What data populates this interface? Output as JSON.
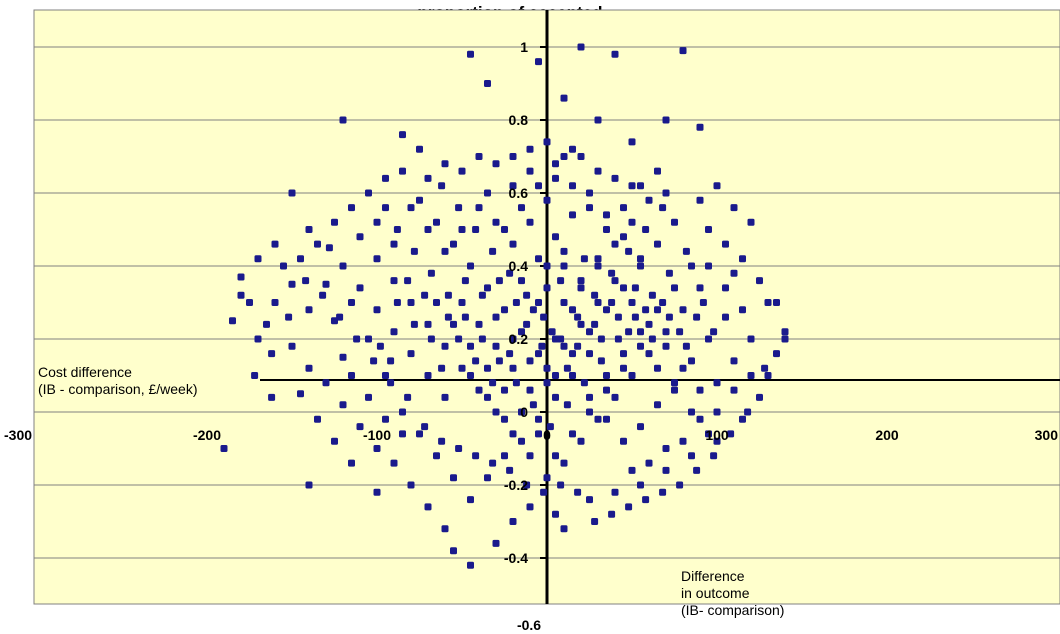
{
  "chart_data": {
    "type": "scatter",
    "title": "...proportion of accepted...",
    "xlabel": "Cost difference (IB - comparison, £/week)",
    "ylabel": "Difference in outcome (IB- comparison)",
    "xlabel_lines": [
      "Cost difference",
      "(IB - comparison, £/week)"
    ],
    "ylabel_lines": [
      "Difference",
      "in outcome",
      "(IB- comparison)"
    ],
    "xlim": [
      -300,
      300
    ],
    "ylim": [
      -0.6,
      1.1
    ],
    "x_ticks": [
      -300,
      -200,
      -100,
      0,
      100,
      200,
      300
    ],
    "x_tick_labels": [
      "-300",
      "-200",
      "-100",
      "0",
      "100",
      "200",
      "300"
    ],
    "y_ticks": [
      -0.4,
      -0.2,
      0,
      0.2,
      0.4,
      0.6,
      0.8,
      1
    ],
    "y_tick_labels": [
      "-0.4",
      "-0.2",
      "0",
      "0.2",
      "0.4",
      "0.6",
      "0.8",
      "1"
    ],
    "y_min_label": "-0.6",
    "grid": true,
    "legend": "none",
    "colors": {
      "plot_background": "#ffffcc",
      "points": "#1a1a8c",
      "axes": "#000000"
    },
    "points": [
      [
        -45,
        0.98
      ],
      [
        -5,
        0.96
      ],
      [
        -35,
        0.9
      ],
      [
        20,
        1.0
      ],
      [
        80,
        0.99
      ],
      [
        40,
        0.98
      ],
      [
        -120,
        0.8
      ],
      [
        -85,
        0.76
      ],
      [
        -75,
        0.72
      ],
      [
        -60,
        0.68
      ],
      [
        -40,
        0.7
      ],
      [
        -20,
        0.62
      ],
      [
        -10,
        0.66
      ],
      [
        5,
        0.64
      ],
      [
        10,
        0.86
      ],
      [
        15,
        0.72
      ],
      [
        30,
        0.8
      ],
      [
        50,
        0.74
      ],
      [
        65,
        0.66
      ],
      [
        70,
        0.8
      ],
      [
        90,
        0.78
      ],
      [
        100,
        0.62
      ],
      [
        110,
        0.56
      ],
      [
        120,
        0.52
      ],
      [
        -150,
        0.6
      ],
      [
        -140,
        0.5
      ],
      [
        -160,
        0.46
      ],
      [
        -170,
        0.42
      ],
      [
        -180,
        0.37
      ],
      [
        -175,
        0.3
      ],
      [
        -165,
        0.24
      ],
      [
        -150,
        0.18
      ],
      [
        -140,
        0.12
      ],
      [
        -130,
        0.08
      ],
      [
        -120,
        0.02
      ],
      [
        -110,
        -0.04
      ],
      [
        -100,
        -0.1
      ],
      [
        -90,
        -0.14
      ],
      [
        -80,
        -0.2
      ],
      [
        -70,
        -0.26
      ],
      [
        -60,
        -0.32
      ],
      [
        -55,
        -0.38
      ],
      [
        -45,
        -0.42
      ],
      [
        -30,
        -0.36
      ],
      [
        -20,
        -0.3
      ],
      [
        -10,
        -0.26
      ],
      [
        5,
        -0.28
      ],
      [
        10,
        -0.32
      ],
      [
        25,
        -0.24
      ],
      [
        40,
        -0.22
      ],
      [
        55,
        -0.2
      ],
      [
        70,
        -0.16
      ],
      [
        85,
        -0.12
      ],
      [
        100,
        -0.08
      ],
      [
        115,
        -0.02
      ],
      [
        125,
        0.04
      ],
      [
        130,
        0.1
      ],
      [
        135,
        0.16
      ],
      [
        140,
        0.22
      ],
      [
        135,
        0.3
      ],
      [
        125,
        0.36
      ],
      [
        115,
        0.42
      ],
      [
        105,
        0.46
      ],
      [
        95,
        0.5
      ],
      [
        -190,
        -0.1
      ],
      [
        -140,
        -0.2
      ],
      [
        -100,
        -0.22
      ],
      [
        -95,
        0.56
      ],
      [
        -110,
        0.48
      ],
      [
        -100,
        0.42
      ],
      [
        -90,
        0.36
      ],
      [
        -80,
        0.3
      ],
      [
        -70,
        0.24
      ],
      [
        -60,
        0.18
      ],
      [
        -50,
        0.12
      ],
      [
        -40,
        0.06
      ],
      [
        -30,
        0.0
      ],
      [
        -20,
        -0.06
      ],
      [
        -10,
        -0.12
      ],
      [
        0,
        -0.18
      ],
      [
        10,
        -0.14
      ],
      [
        20,
        -0.08
      ],
      [
        30,
        -0.02
      ],
      [
        40,
        0.04
      ],
      [
        50,
        0.1
      ],
      [
        60,
        0.16
      ],
      [
        70,
        0.22
      ],
      [
        80,
        0.28
      ],
      [
        90,
        0.34
      ],
      [
        -88,
        0.5
      ],
      [
        -78,
        0.44
      ],
      [
        -68,
        0.38
      ],
      [
        -58,
        0.32
      ],
      [
        -48,
        0.26
      ],
      [
        -38,
        0.2
      ],
      [
        -28,
        0.14
      ],
      [
        -18,
        0.08
      ],
      [
        -8,
        0.02
      ],
      [
        2,
        -0.04
      ],
      [
        12,
        0.02
      ],
      [
        22,
        0.08
      ],
      [
        32,
        0.14
      ],
      [
        42,
        0.2
      ],
      [
        52,
        0.26
      ],
      [
        62,
        0.32
      ],
      [
        72,
        0.38
      ],
      [
        82,
        0.44
      ],
      [
        -75,
        0.58
      ],
      [
        -65,
        0.52
      ],
      [
        -55,
        0.46
      ],
      [
        -45,
        0.4
      ],
      [
        -35,
        0.34
      ],
      [
        -25,
        0.28
      ],
      [
        -15,
        0.22
      ],
      [
        -5,
        0.16
      ],
      [
        5,
        0.1
      ],
      [
        15,
        0.16
      ],
      [
        25,
        0.22
      ],
      [
        35,
        0.28
      ],
      [
        45,
        0.34
      ],
      [
        55,
        0.4
      ],
      [
        65,
        0.46
      ],
      [
        75,
        0.52
      ],
      [
        -62,
        0.62
      ],
      [
        -52,
        0.56
      ],
      [
        -42,
        0.5
      ],
      [
        -32,
        0.44
      ],
      [
        -22,
        0.38
      ],
      [
        -12,
        0.32
      ],
      [
        -2,
        0.26
      ],
      [
        8,
        0.2
      ],
      [
        18,
        0.26
      ],
      [
        28,
        0.32
      ],
      [
        38,
        0.38
      ],
      [
        48,
        0.44
      ],
      [
        58,
        0.5
      ],
      [
        68,
        0.56
      ],
      [
        -50,
        0.3
      ],
      [
        -40,
        0.24
      ],
      [
        -30,
        0.18
      ],
      [
        -20,
        0.12
      ],
      [
        -10,
        0.06
      ],
      [
        0,
        0.12
      ],
      [
        10,
        0.18
      ],
      [
        20,
        0.24
      ],
      [
        30,
        0.3
      ],
      [
        40,
        0.36
      ],
      [
        50,
        0.3
      ],
      [
        60,
        0.24
      ],
      [
        70,
        0.18
      ],
      [
        80,
        0.12
      ],
      [
        90,
        0.06
      ],
      [
        100,
        0.0
      ],
      [
        -45,
        0.1
      ],
      [
        -35,
        0.04
      ],
      [
        -25,
        -0.02
      ],
      [
        -15,
        -0.08
      ],
      [
        -5,
        -0.02
      ],
      [
        5,
        0.04
      ],
      [
        15,
        0.1
      ],
      [
        25,
        0.04
      ],
      [
        35,
        -0.02
      ],
      [
        45,
        -0.08
      ],
      [
        55,
        -0.04
      ],
      [
        65,
        0.02
      ],
      [
        75,
        0.08
      ],
      [
        85,
        0.14
      ],
      [
        95,
        0.2
      ],
      [
        105,
        0.26
      ],
      [
        -130,
        0.35
      ],
      [
        -125,
        0.25
      ],
      [
        -120,
        0.15
      ],
      [
        -115,
        0.3
      ],
      [
        -105,
        0.2
      ],
      [
        -95,
        0.1
      ],
      [
        -85,
        0.0
      ],
      [
        -75,
        -0.06
      ],
      [
        -65,
        -0.12
      ],
      [
        -55,
        -0.18
      ],
      [
        -45,
        -0.24
      ],
      [
        -35,
        -0.18
      ],
      [
        -25,
        -0.12
      ],
      [
        -15,
        0.36
      ],
      [
        -5,
        0.42
      ],
      [
        5,
        0.48
      ],
      [
        15,
        0.54
      ],
      [
        25,
        0.6
      ],
      [
        35,
        0.54
      ],
      [
        45,
        0.48
      ],
      [
        55,
        0.42
      ],
      [
        -25,
        0.5
      ],
      [
        -15,
        0.56
      ],
      [
        -5,
        0.62
      ],
      [
        5,
        0.68
      ],
      [
        15,
        0.62
      ],
      [
        25,
        0.56
      ],
      [
        35,
        0.5
      ],
      [
        45,
        0.56
      ],
      [
        55,
        0.62
      ],
      [
        -35,
        0.6
      ],
      [
        -20,
        0.7
      ],
      [
        0,
        0.74
      ],
      [
        20,
        0.7
      ],
      [
        40,
        0.64
      ],
      [
        -70,
        0.1
      ],
      [
        -60,
        0.04
      ],
      [
        -80,
        0.16
      ],
      [
        -90,
        0.22
      ],
      [
        -100,
        0.28
      ],
      [
        -110,
        0.34
      ],
      [
        -120,
        0.4
      ],
      [
        -128,
        0.45
      ],
      [
        -140,
        0.28
      ],
      [
        -150,
        0.35
      ],
      [
        -160,
        0.3
      ],
      [
        -145,
        0.05
      ],
      [
        -135,
        -0.02
      ],
      [
        -125,
        -0.08
      ],
      [
        -115,
        -0.14
      ],
      [
        95,
        0.4
      ],
      [
        105,
        0.34
      ],
      [
        115,
        0.28
      ],
      [
        120,
        0.2
      ],
      [
        110,
        0.14
      ],
      [
        100,
        0.08
      ],
      [
        90,
        -0.02
      ],
      [
        80,
        -0.08
      ],
      [
        70,
        -0.1
      ],
      [
        60,
        -0.14
      ],
      [
        50,
        -0.16
      ],
      [
        110,
        0.06
      ],
      [
        120,
        0.1
      ],
      [
        -85,
        -0.06
      ],
      [
        -95,
        -0.02
      ],
      [
        -105,
        0.04
      ],
      [
        -115,
        0.1
      ],
      [
        -20,
        0.46
      ],
      [
        -10,
        0.52
      ],
      [
        0,
        0.58
      ],
      [
        10,
        0.4
      ],
      [
        20,
        0.34
      ],
      [
        30,
        0.4
      ],
      [
        40,
        0.46
      ],
      [
        50,
        0.52
      ],
      [
        60,
        0.58
      ],
      [
        -30,
        0.26
      ],
      [
        -20,
        0.2
      ],
      [
        -10,
        0.14
      ],
      [
        0,
        0.08
      ],
      [
        10,
        0.3
      ],
      [
        20,
        0.36
      ],
      [
        30,
        0.42
      ],
      [
        0,
        0.34
      ],
      [
        10,
        0.44
      ],
      [
        -5,
        0.3
      ],
      [
        5,
        0.2
      ],
      [
        15,
        0.28
      ],
      [
        25,
        0.16
      ],
      [
        35,
        0.1
      ],
      [
        45,
        0.16
      ],
      [
        55,
        0.22
      ],
      [
        65,
        0.28
      ],
      [
        75,
        0.34
      ],
      [
        85,
        0.4
      ],
      [
        -60,
        0.44
      ],
      [
        -50,
        0.5
      ],
      [
        -40,
        0.56
      ],
      [
        -30,
        0.52
      ],
      [
        -70,
        0.5
      ],
      [
        -80,
        0.56
      ],
      [
        -90,
        0.46
      ],
      [
        -100,
        0.52
      ],
      [
        -65,
        0.3
      ],
      [
        -55,
        0.24
      ],
      [
        -45,
        0.18
      ],
      [
        -35,
        0.12
      ],
      [
        -25,
        0.06
      ],
      [
        -15,
        0.0
      ],
      [
        -5,
        -0.06
      ],
      [
        5,
        -0.12
      ],
      [
        15,
        -0.06
      ],
      [
        25,
        0.0
      ],
      [
        35,
        0.06
      ],
      [
        45,
        0.12
      ],
      [
        55,
        0.18
      ],
      [
        65,
        0.12
      ],
      [
        75,
        0.06
      ],
      [
        85,
        0.0
      ],
      [
        95,
        -0.06
      ],
      [
        0,
        0.4
      ],
      [
        3,
        0.22
      ],
      [
        -3,
        0.18
      ],
      [
        8,
        0.36
      ],
      [
        -8,
        0.28
      ],
      [
        12,
        0.12
      ],
      [
        -12,
        0.24
      ],
      [
        18,
        0.18
      ],
      [
        -18,
        0.3
      ],
      [
        22,
        0.42
      ],
      [
        -22,
        0.16
      ],
      [
        28,
        0.24
      ],
      [
        -28,
        0.36
      ],
      [
        32,
        0.2
      ],
      [
        -32,
        0.08
      ],
      [
        38,
        0.3
      ],
      [
        -38,
        0.32
      ],
      [
        42,
        0.26
      ],
      [
        -42,
        0.14
      ],
      [
        48,
        0.22
      ],
      [
        -48,
        0.36
      ],
      [
        52,
        0.34
      ],
      [
        -52,
        0.2
      ],
      [
        58,
        0.28
      ],
      [
        -58,
        0.26
      ],
      [
        62,
        0.2
      ],
      [
        -62,
        0.12
      ],
      [
        68,
        0.3
      ],
      [
        -68,
        0.2
      ],
      [
        72,
        0.26
      ],
      [
        -72,
        0.32
      ],
      [
        78,
        0.22
      ],
      [
        -78,
        0.24
      ],
      [
        82,
        0.18
      ],
      [
        -82,
        0.36
      ],
      [
        88,
        0.26
      ],
      [
        -88,
        0.3
      ],
      [
        92,
        0.3
      ],
      [
        -92,
        0.14
      ],
      [
        98,
        0.22
      ],
      [
        -98,
        0.18
      ],
      [
        -180,
        0.32
      ],
      [
        -170,
        0.2
      ],
      [
        -185,
        0.25
      ],
      [
        -155,
        0.4
      ],
      [
        -145,
        0.42
      ],
      [
        -135,
        0.46
      ],
      [
        -125,
        0.52
      ],
      [
        -115,
        0.56
      ],
      [
        -105,
        0.6
      ],
      [
        -95,
        0.64
      ],
      [
        -85,
        0.66
      ],
      [
        -70,
        0.64
      ],
      [
        -50,
        0.66
      ],
      [
        -30,
        0.68
      ],
      [
        -10,
        0.72
      ],
      [
        10,
        0.7
      ],
      [
        30,
        0.66
      ],
      [
        50,
        0.62
      ],
      [
        70,
        0.6
      ],
      [
        90,
        0.58
      ],
      [
        110,
        0.38
      ],
      [
        130,
        0.3
      ],
      [
        140,
        0.2
      ],
      [
        128,
        0.12
      ],
      [
        118,
        0.0
      ],
      [
        108,
        -0.06
      ],
      [
        98,
        -0.12
      ],
      [
        88,
        -0.16
      ],
      [
        78,
        -0.2
      ],
      [
        68,
        -0.22
      ],
      [
        58,
        -0.24
      ],
      [
        48,
        -0.26
      ],
      [
        38,
        -0.28
      ],
      [
        28,
        -0.3
      ],
      [
        18,
        -0.22
      ],
      [
        8,
        -0.2
      ],
      [
        -2,
        -0.22
      ],
      [
        -12,
        -0.2
      ],
      [
        -22,
        -0.16
      ],
      [
        -32,
        -0.14
      ],
      [
        -42,
        -0.12
      ],
      [
        -52,
        -0.1
      ],
      [
        -62,
        -0.08
      ],
      [
        -72,
        -0.04
      ],
      [
        -82,
        0.04
      ],
      [
        -92,
        0.08
      ],
      [
        -102,
        0.14
      ],
      [
        -112,
        0.2
      ],
      [
        -122,
        0.26
      ],
      [
        -132,
        0.32
      ],
      [
        -142,
        0.36
      ],
      [
        -152,
        0.26
      ],
      [
        -162,
        0.16
      ],
      [
        -172,
        0.1
      ],
      [
        -162,
        0.04
      ]
    ]
  }
}
